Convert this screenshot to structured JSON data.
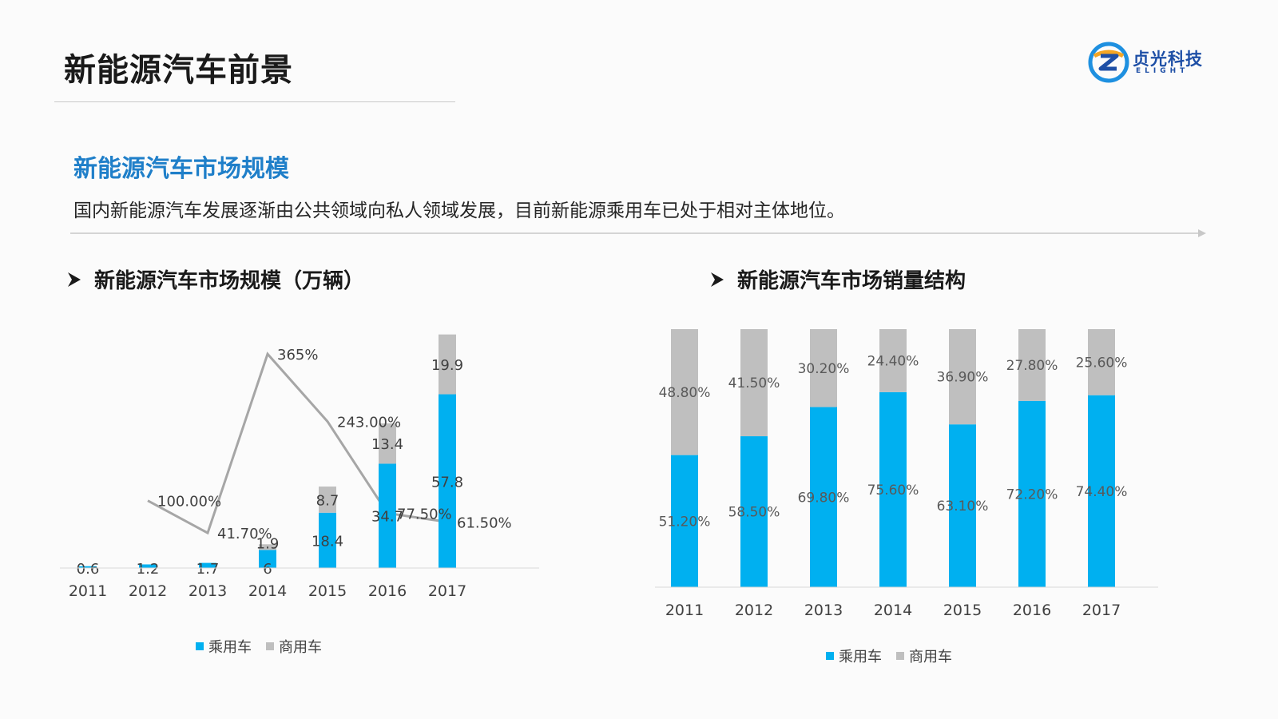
{
  "page": {
    "title": "新能源汽车前景",
    "section_heading": "新能源汽车市场规模",
    "section_desc": "国内新能源汽车发展逐渐由公共领域向私人领域发展，目前新能源乘用车已处于相对主体地位。"
  },
  "logo": {
    "cn": "贞光科技",
    "en": "ELIGHT"
  },
  "charts": {
    "left_title": "新能源汽车市场规模（万辆）",
    "right_title": "新能源汽车市场销量结构"
  },
  "colors": {
    "passenger": "#00b0f0",
    "commercial": "#bfbfbf",
    "line": "#a6a6a6",
    "heading": "#1f7fc9"
  },
  "chart_data": [
    {
      "type": "bar",
      "stacked": true,
      "categories": [
        "2011",
        "2012",
        "2013",
        "2014",
        "2015",
        "2016",
        "2017"
      ],
      "series": [
        {
          "name": "乘用车",
          "values": [
            0.6,
            1.2,
            1.7,
            6,
            18.4,
            34.7,
            57.8
          ],
          "labels": [
            "0.6",
            "1.2",
            "1.7",
            "6",
            "18.4",
            "34.7",
            "57.8"
          ]
        },
        {
          "name": "商用车",
          "values": [
            0,
            0,
            0,
            1.9,
            8.7,
            13.4,
            19.9
          ],
          "labels": [
            "",
            "",
            "",
            "1.9",
            "8.7",
            "13.4",
            "19.9"
          ]
        }
      ],
      "growth_line": {
        "values": [
          null,
          100.0,
          41.7,
          365.0,
          243.0,
          77.5,
          61.5
        ],
        "labels": [
          "",
          "100.00%",
          "41.70%",
          "365%",
          "243.00%",
          "77.50%",
          "61.50%"
        ]
      },
      "ylim": [
        0,
        80
      ],
      "legend_position": "bottom"
    },
    {
      "type": "bar",
      "stacked": true,
      "percent": true,
      "categories": [
        "2011",
        "2012",
        "2013",
        "2014",
        "2015",
        "2016",
        "2017"
      ],
      "series": [
        {
          "name": "乘用车",
          "values": [
            51.2,
            58.5,
            69.8,
            75.6,
            63.1,
            72.2,
            74.4
          ],
          "labels": [
            "51.20%",
            "58.50%",
            "69.80%",
            "75.60%",
            "63.10%",
            "72.20%",
            "74.40%"
          ]
        },
        {
          "name": "商用车",
          "values": [
            48.8,
            41.5,
            30.2,
            24.4,
            36.9,
            27.8,
            25.6
          ],
          "labels": [
            "48.80%",
            "41.50%",
            "30.20%",
            "24.40%",
            "36.90%",
            "27.80%",
            "25.60%"
          ]
        }
      ],
      "ylim": [
        0,
        100
      ],
      "legend_position": "bottom"
    }
  ]
}
